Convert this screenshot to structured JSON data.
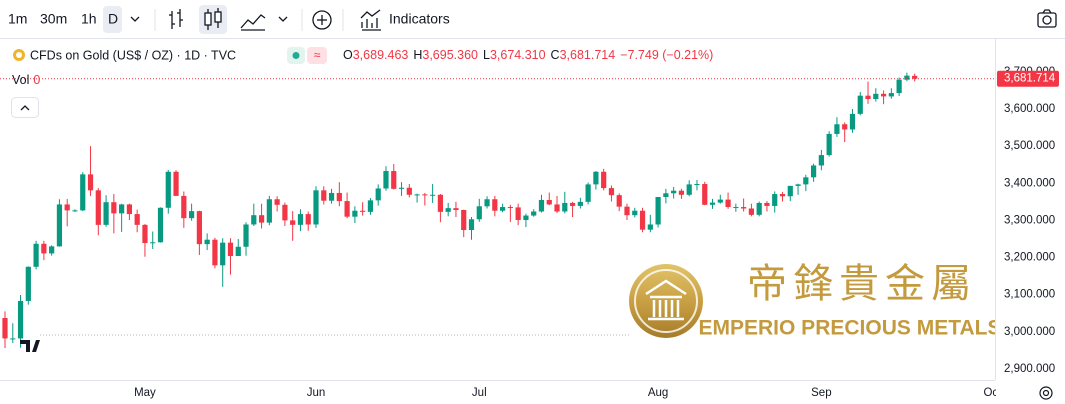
{
  "toolbar": {
    "intervals": [
      "1m",
      "30m",
      "1h",
      "D"
    ],
    "indicators": "Indicators"
  },
  "chart_data": {
    "type": "candlestick",
    "title": "CFDs on Gold (US$ / OZ) · 1D · TVC",
    "legend": [
      {
        "key": "O",
        "value": "3,689.463"
      },
      {
        "key": "H",
        "value": "3,695.360"
      },
      {
        "key": "L",
        "value": "3,674.310"
      },
      {
        "key": "C",
        "value": "3,681.714"
      }
    ],
    "change_label": "−7.749 (−0.21%)",
    "volume_label": "Vol",
    "volume": 0,
    "last_price_label": "3,681.714",
    "up_color": "#089981",
    "down_color": "#f23645",
    "grid": false,
    "ylim": [
      2870,
      3786
    ],
    "yticks": [
      {
        "value": 3700,
        "label": "3,700.000"
      },
      {
        "value": 3600,
        "label": "3,600.000"
      },
      {
        "value": 3500,
        "label": "3,500.000"
      },
      {
        "value": 3400,
        "label": "3,400.000"
      },
      {
        "value": 3300,
        "label": "3,300.000"
      },
      {
        "value": 3200,
        "label": "3,200.000"
      },
      {
        "value": 3100,
        "label": "3,100.000"
      },
      {
        "value": 3000,
        "label": "3,000.000"
      },
      {
        "value": 2900,
        "label": "2,900.000"
      }
    ],
    "categories": [
      null,
      null,
      null,
      null,
      null,
      null,
      null,
      null,
      null,
      null,
      null,
      null,
      null,
      null,
      null,
      null,
      null,
      null,
      "May",
      null,
      null,
      null,
      null,
      null,
      null,
      null,
      null,
      null,
      null,
      null,
      null,
      null,
      null,
      null,
      null,
      null,
      null,
      null,
      null,
      null,
      "Jun",
      null,
      null,
      null,
      null,
      null,
      null,
      null,
      null,
      null,
      null,
      null,
      null,
      null,
      null,
      null,
      null,
      null,
      null,
      null,
      null,
      "Jul",
      null,
      null,
      null,
      null,
      null,
      null,
      null,
      null,
      null,
      null,
      null,
      null,
      null,
      null,
      null,
      null,
      null,
      null,
      null,
      null,
      null,
      null,
      "Aug",
      null,
      null,
      null,
      null,
      null,
      null,
      null,
      null,
      null,
      null,
      null,
      null,
      null,
      null,
      null,
      null,
      null,
      null,
      null,
      null,
      "Sep",
      null,
      null,
      null,
      null,
      null,
      null,
      null,
      null,
      null,
      null,
      null,
      null,
      null,
      null,
      null,
      null,
      null,
      null,
      null,
      null,
      null,
      "Oct"
    ],
    "open": [
      3037,
      2982,
      2982,
      3083,
      3175,
      3237,
      3211,
      3230,
      3343,
      3327,
      3327,
      3424,
      3381,
      3288,
      3349,
      3319,
      3343,
      3317,
      3288,
      3239,
      3241,
      3334,
      3431,
      3366,
      3306,
      3325,
      3236,
      3248,
      3179,
      3240,
      3204,
      3229,
      3289,
      3314,
      3294,
      3357,
      3342,
      3300,
      3288,
      3317,
      3289,
      3381,
      3353,
      3374,
      3352,
      3310,
      3326,
      3323,
      3354,
      3386,
      3433,
      3385,
      3388,
      3369,
      3370,
      3368,
      3369,
      3323,
      3333,
      3328,
      3274,
      3303,
      3338,
      3357,
      3326,
      3336,
      3335,
      3301,
      3313,
      3324,
      3355,
      3343,
      3324,
      3347,
      3339,
      3350,
      3397,
      3431,
      3387,
      3368,
      3337,
      3314,
      3326,
      3275,
      3289,
      3363,
      3373,
      3380,
      3369,
      3397,
      3398,
      3342,
      3348,
      3356,
      3336,
      3336,
      3332,
      3315,
      3347,
      3339,
      3371,
      3365,
      3393,
      3397,
      3416,
      3448,
      3476,
      3533,
      3559,
      3545,
      3587,
      3636,
      3627,
      3641,
      3634,
      3643,
      3679,
      3689.463,
      null,
      null,
      null,
      null,
      null,
      null,
      null,
      null,
      null,
      null
    ],
    "high": [
      3055,
      3023,
      3099,
      3176,
      3245,
      3245,
      3233,
      3357,
      3358,
      3330,
      3430,
      3500,
      3387,
      3368,
      3371,
      3345,
      3345,
      3329,
      3290,
      3270,
      3335,
      3436,
      3435,
      3378,
      3345,
      3326,
      3265,
      3253,
      3252,
      3252,
      3250,
      3295,
      3345,
      3345,
      3366,
      3365,
      3348,
      3325,
      3330,
      3324,
      3392,
      3392,
      3385,
      3403,
      3375,
      3338,
      3349,
      3360,
      3397,
      3446,
      3452,
      3403,
      3398,
      3372,
      3374,
      3398,
      3371,
      3347,
      3350,
      3329,
      3309,
      3358,
      3365,
      3366,
      3345,
      3342,
      3345,
      3318,
      3330,
      3369,
      3375,
      3366,
      3377,
      3350,
      3361,
      3402,
      3433,
      3439,
      3394,
      3373,
      3345,
      3334,
      3334,
      3315,
      3363,
      3385,
      3390,
      3385,
      3408,
      3409,
      3404,
      3358,
      3369,
      3375,
      3345,
      3359,
      3345,
      3351,
      3352,
      3378,
      3376,
      3393,
      3399,
      3423,
      3453,
      3490,
      3540,
      3578,
      3564,
      3600,
      3646,
      3674,
      3656,
      3650,
      3656,
      3685,
      3698,
      3695.36,
      null,
      null,
      null,
      null,
      null,
      null,
      null,
      null,
      null,
      null
    ],
    "low": [
      2956,
      2970,
      2957,
      3073,
      3168,
      3193,
      3205,
      3229,
      3284,
      3323,
      3325,
      3366,
      3260,
      3283,
      3265,
      3269,
      3301,
      3268,
      3202,
      3223,
      3240,
      3318,
      3366,
      3280,
      3299,
      3207,
      3220,
      3171,
      3121,
      3154,
      3204,
      3205,
      3285,
      3278,
      3287,
      3324,
      3285,
      3245,
      3271,
      3272,
      3280,
      3343,
      3345,
      3338,
      3306,
      3293,
      3313,
      3315,
      3340,
      3380,
      3383,
      3366,
      3362,
      3348,
      3340,
      3347,
      3295,
      3311,
      3309,
      3255,
      3248,
      3296,
      3332,
      3311,
      3322,
      3296,
      3287,
      3282,
      3310,
      3321,
      3341,
      3320,
      3319,
      3309,
      3332,
      3343,
      3383,
      3381,
      3351,
      3325,
      3301,
      3308,
      3268,
      3268,
      3281,
      3346,
      3359,
      3358,
      3365,
      3381,
      3341,
      3331,
      3345,
      3331,
      3323,
      3324,
      3311,
      3311,
      3324,
      3321,
      3351,
      3352,
      3369,
      3379,
      3404,
      3435,
      3472,
      3525,
      3511,
      3536,
      3583,
      3614,
      3620,
      3613,
      3628,
      3635,
      3675,
      3674.31,
      null,
      null,
      null,
      null,
      null,
      null,
      null,
      null,
      null,
      null
    ],
    "close": [
      2982,
      2982,
      3083,
      3175,
      3237,
      3211,
      3230,
      3343,
      3327,
      3327,
      3424,
      3381,
      3288,
      3349,
      3319,
      3343,
      3317,
      3288,
      3239,
      3241,
      3334,
      3431,
      3366,
      3306,
      3325,
      3236,
      3248,
      3179,
      3240,
      3204,
      3229,
      3289,
      3314,
      3294,
      3357,
      3342,
      3300,
      3288,
      3317,
      3289,
      3381,
      3353,
      3374,
      3352,
      3310,
      3326,
      3323,
      3354,
      3386,
      3433,
      3385,
      3388,
      3369,
      3370,
      3368,
      3369,
      3323,
      3333,
      3328,
      3274,
      3303,
      3338,
      3357,
      3326,
      3336,
      3335,
      3301,
      3313,
      3324,
      3355,
      3343,
      3324,
      3347,
      3339,
      3350,
      3397,
      3431,
      3387,
      3368,
      3337,
      3314,
      3326,
      3275,
      3289,
      3363,
      3373,
      3380,
      3369,
      3397,
      3398,
      3342,
      3348,
      3356,
      3336,
      3336,
      3332,
      3315,
      3347,
      3339,
      3371,
      3365,
      3393,
      3397,
      3416,
      3448,
      3476,
      3533,
      3559,
      3545,
      3587,
      3636,
      3627,
      3641,
      3634,
      3643,
      3679,
      3690,
      3681.714,
      null,
      null,
      null,
      null,
      null,
      null,
      null,
      null,
      null,
      null
    ]
  },
  "watermark": {
    "chinese": "帝鋒貴金屬",
    "english": "EMPERIO PRECIOUS METALS"
  }
}
